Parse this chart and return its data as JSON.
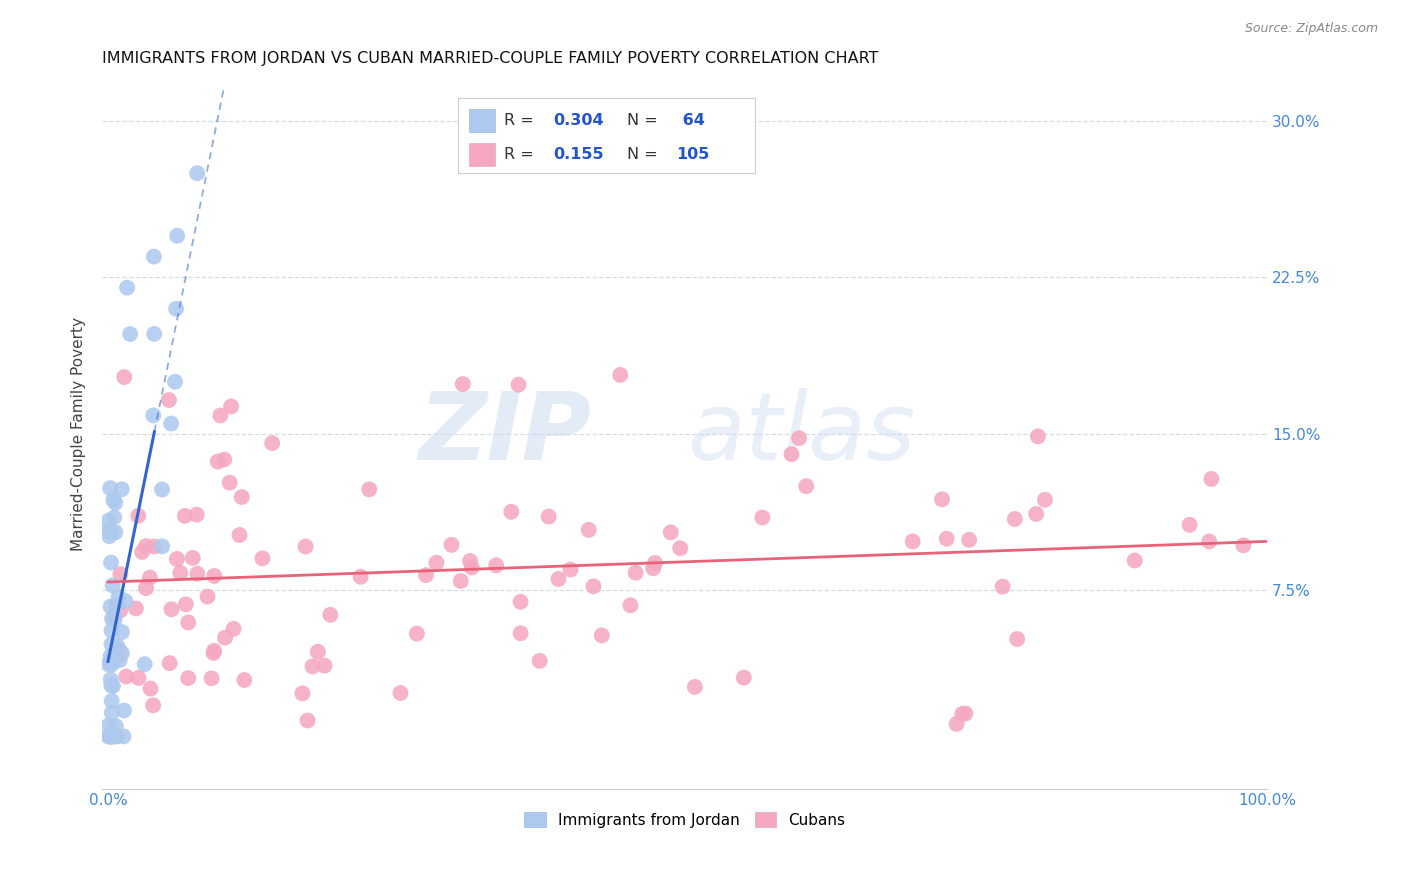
{
  "title": "IMMIGRANTS FROM JORDAN VS CUBAN MARRIED-COUPLE FAMILY POVERTY CORRELATION CHART",
  "source": "Source: ZipAtlas.com",
  "ylabel": "Married-Couple Family Poverty",
  "xlim": [
    -0.005,
    1.0
  ],
  "ylim": [
    -0.02,
    0.32
  ],
  "xticklabels_edges": [
    "0.0%",
    "100.0%"
  ],
  "yticks_right": [
    0.075,
    0.15,
    0.225,
    0.3
  ],
  "yticklabels_right": [
    "7.5%",
    "15.0%",
    "22.5%",
    "30.0%"
  ],
  "grid_color": "#d4dce8",
  "background_color": "#ffffff",
  "jordan_color": "#adc9ee",
  "cuban_color": "#f5a8c0",
  "jordan_R": 0.304,
  "jordan_N": 64,
  "cuban_R": 0.155,
  "cuban_N": 105,
  "trend_jordan_color": "#3366cc",
  "trend_cuban_color": "#e8637a",
  "watermark_zip": "ZIP",
  "watermark_atlas": "atlas",
  "title_fontsize": 11.5,
  "axis_label_color": "#555555",
  "right_tick_color": "#4488dd"
}
